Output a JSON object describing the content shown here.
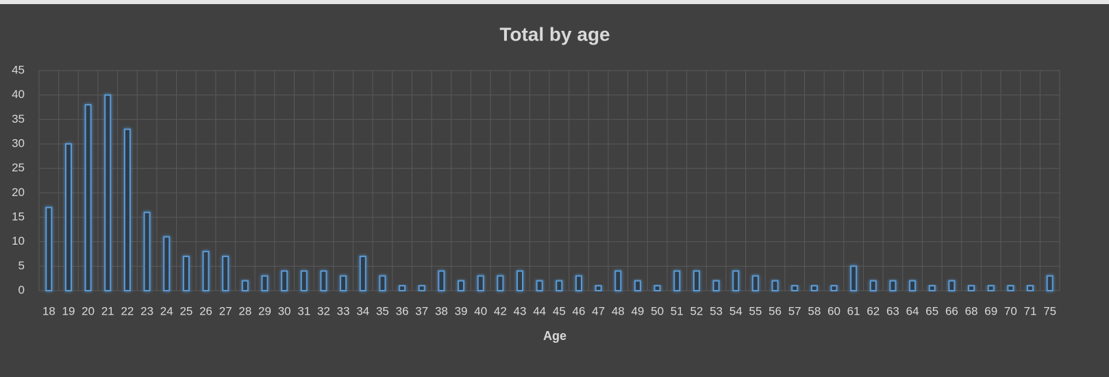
{
  "chart_data": {
    "type": "bar",
    "title": "Total by age",
    "x_label": "Age",
    "categories": [
      "18",
      "19",
      "20",
      "21",
      "22",
      "23",
      "24",
      "25",
      "26",
      "27",
      "28",
      "29",
      "30",
      "31",
      "32",
      "33",
      "34",
      "35",
      "36",
      "37",
      "38",
      "39",
      "40",
      "42",
      "43",
      "44",
      "45",
      "46",
      "47",
      "48",
      "49",
      "50",
      "51",
      "52",
      "53",
      "54",
      "55",
      "56",
      "57",
      "58",
      "60",
      "61",
      "62",
      "63",
      "64",
      "65",
      "66",
      "68",
      "69",
      "70",
      "71",
      "75"
    ],
    "values": [
      17,
      30,
      38,
      40,
      33,
      16,
      11,
      7,
      8,
      7,
      2,
      3,
      4,
      4,
      4,
      3,
      7,
      3,
      1,
      1,
      4,
      2,
      3,
      3,
      4,
      2,
      2,
      3,
      1,
      4,
      2,
      1,
      4,
      4,
      2,
      4,
      3,
      2,
      1,
      1,
      1,
      5,
      2,
      2,
      2,
      1,
      2,
      1,
      1,
      1,
      1,
      3
    ],
    "color": "#5b9bd5",
    "ylim": [
      0,
      45
    ],
    "yticks": [
      0,
      5,
      10,
      15,
      20,
      25,
      30,
      35,
      40,
      45
    ],
    "grid": true
  }
}
